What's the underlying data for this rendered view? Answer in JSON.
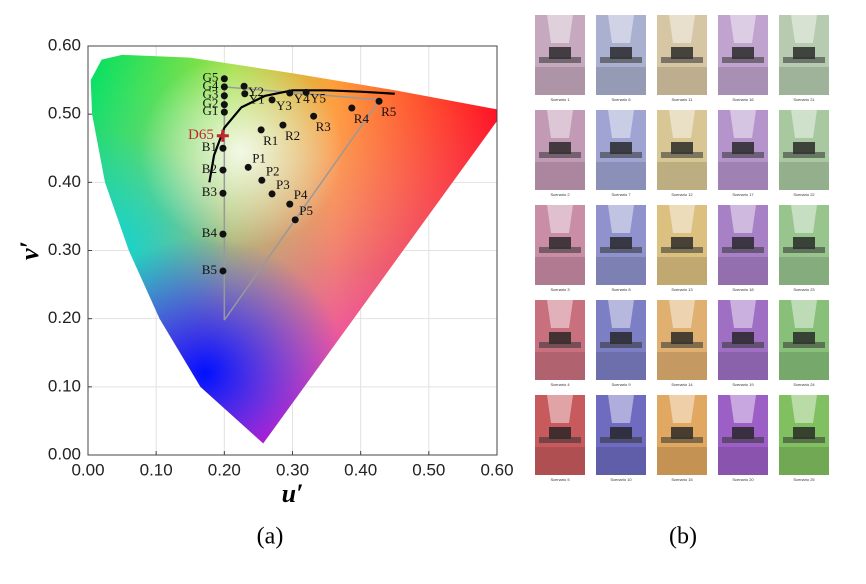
{
  "chart_data": {
    "type": "scatter",
    "xlabel": "u′",
    "ylabel": "v′",
    "xlim": [
      0,
      0.6
    ],
    "ylim": [
      0,
      0.6
    ],
    "xticks": [
      {
        "value": 0,
        "label": "0.00"
      },
      {
        "value": 0.1,
        "label": "0.10"
      },
      {
        "value": 0.2,
        "label": "0.20"
      },
      {
        "value": 0.3,
        "label": "0.30"
      },
      {
        "value": 0.4,
        "label": "0.40"
      },
      {
        "value": 0.5,
        "label": "0.50"
      },
      {
        "value": 0.6,
        "label": "0.60"
      }
    ],
    "yticks": [
      {
        "value": 0,
        "label": "0.00"
      },
      {
        "value": 0.1,
        "label": "0.10"
      },
      {
        "value": 0.2,
        "label": "0.20"
      },
      {
        "value": 0.3,
        "label": "0.30"
      },
      {
        "value": 0.4,
        "label": "0.40"
      },
      {
        "value": 0.5,
        "label": "0.50"
      },
      {
        "value": 0.6,
        "label": "0.60"
      }
    ],
    "grid": true,
    "color": "#111111",
    "labels": [
      "G5",
      "G4",
      "G3",
      "G2",
      "G1",
      "Y2",
      "Y1",
      "Y3",
      "Y4",
      "Y5",
      "R1",
      "R2",
      "R3",
      "R4",
      "R5",
      "P1",
      "P2",
      "P3",
      "P4",
      "P5",
      "B1",
      "B2",
      "B3",
      "B4",
      "B5"
    ],
    "x": [
      0.2,
      0.2,
      0.2,
      0.2,
      0.2,
      0.229,
      0.23,
      0.27,
      0.296,
      0.32,
      0.254,
      0.286,
      0.331,
      0.387,
      0.427,
      0.235,
      0.255,
      0.27,
      0.296,
      0.304,
      0.198,
      0.198,
      0.198,
      0.198,
      0.198
    ],
    "y": [
      0.552,
      0.54,
      0.527,
      0.514,
      0.503,
      0.541,
      0.53,
      0.521,
      0.531,
      0.532,
      0.477,
      0.484,
      0.497,
      0.509,
      0.519,
      0.422,
      0.403,
      0.383,
      0.368,
      0.345,
      0.45,
      0.418,
      0.384,
      0.324,
      0.27
    ],
    "reference": {
      "label": "D65",
      "x": 0.1978,
      "y": 0.4683,
      "color": "#c0282d"
    },
    "locus": {
      "x": [
        0.178,
        0.185,
        0.2,
        0.225,
        0.26,
        0.3,
        0.35,
        0.4,
        0.45
      ],
      "y": [
        0.4,
        0.44,
        0.48,
        0.51,
        0.527,
        0.535,
        0.535,
        0.533,
        0.53
      ],
      "color": "#000000"
    },
    "gamut": {
      "x": [
        0.2,
        0.2,
        0.428,
        0.2
      ],
      "y": [
        0.198,
        0.54,
        0.521,
        0.198
      ],
      "color": "#999999"
    },
    "spectral_locus": {
      "x": [
        0.257,
        0.165,
        0.105,
        0.06,
        0.025,
        0.006,
        0.004,
        0.02,
        0.05,
        0.15,
        0.3,
        0.45,
        0.6,
        0.6,
        0.257
      ],
      "y": [
        0.017,
        0.1,
        0.2,
        0.3,
        0.4,
        0.5,
        0.55,
        0.58,
        0.587,
        0.583,
        0.56,
        0.535,
        0.507,
        0.49,
        0.017
      ]
    }
  },
  "panels": {
    "a": "(a)",
    "b": "(b)"
  },
  "scenarios": [
    {
      "label": "Scenario 1",
      "color": "#c7a9bf"
    },
    {
      "label": "Scenario 2",
      "color": "#c29ab5"
    },
    {
      "label": "Scenario 3",
      "color": "#c98da5"
    },
    {
      "label": "Scenario 4",
      "color": "#c9707f"
    },
    {
      "label": "Scenario 5",
      "color": "#c85a5e"
    },
    {
      "label": "Scenario 6",
      "color": "#aab0cf"
    },
    {
      "label": "Scenario 7",
      "color": "#9fa4d2"
    },
    {
      "label": "Scenario 8",
      "color": "#8f92cc"
    },
    {
      "label": "Scenario 9",
      "color": "#7d7fc4"
    },
    {
      "label": "Scenario 10",
      "color": "#6e6bc0"
    },
    {
      "label": "Scenario 11",
      "color": "#d6c6a3"
    },
    {
      "label": "Scenario 12",
      "color": "#d8c795"
    },
    {
      "label": "Scenario 13",
      "color": "#dcc080"
    },
    {
      "label": "Scenario 14",
      "color": "#e0b070"
    },
    {
      "label": "Scenario 15",
      "color": "#e0a860"
    },
    {
      "label": "Scenario 16",
      "color": "#c0a4cf"
    },
    {
      "label": "Scenario 17",
      "color": "#b594cc"
    },
    {
      "label": "Scenario 18",
      "color": "#a880c5"
    },
    {
      "label": "Scenario 19",
      "color": "#9e6fc3"
    },
    {
      "label": "Scenario 20",
      "color": "#9c5fc6"
    },
    {
      "label": "Scenario 21",
      "color": "#b6cbb0"
    },
    {
      "label": "Scenario 22",
      "color": "#a8c8a0"
    },
    {
      "label": "Scenario 23",
      "color": "#98c48e"
    },
    {
      "label": "Scenario 24",
      "color": "#88c07a"
    },
    {
      "label": "Scenario 25",
      "color": "#80c060"
    }
  ]
}
